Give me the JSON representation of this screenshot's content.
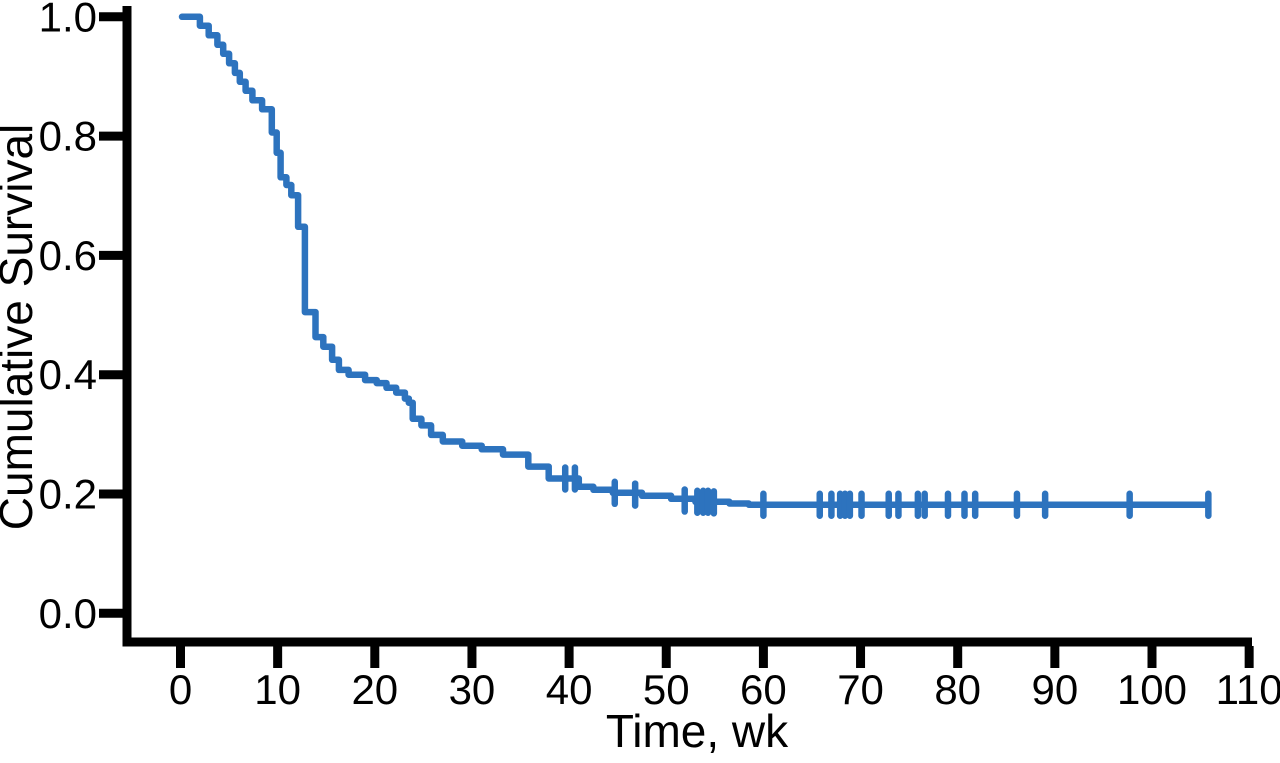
{
  "chart_data": {
    "type": "line",
    "subtype": "kaplan-meier-step-curve",
    "title": "",
    "xlabel": "Time, wk",
    "ylabel": "Cumulative Survival",
    "xlim": [
      0,
      110
    ],
    "ylim": [
      0.0,
      1.0
    ],
    "x_tick_values": [
      0,
      10,
      20,
      30,
      40,
      50,
      60,
      70,
      80,
      90,
      100,
      110
    ],
    "x_tick_labels": [
      "0",
      "10",
      "20",
      "30",
      "40",
      "50",
      "60",
      "70",
      "80",
      "90",
      "100",
      "110"
    ],
    "y_tick_values": [
      0.0,
      0.2,
      0.4,
      0.6,
      0.8,
      1.0
    ],
    "y_tick_labels": [
      "0.0",
      "0.2",
      "0.4",
      "0.6",
      "0.8",
      "1.0"
    ],
    "grid": false,
    "legend": "none",
    "line_color": "#2d73be",
    "axis_color": "#000000",
    "series": [
      {
        "name": "cumulative-survival",
        "steps": [
          [
            0.15,
            1.0
          ],
          [
            2.0,
            0.985
          ],
          [
            2.9,
            0.969
          ],
          [
            3.8,
            0.953
          ],
          [
            4.4,
            0.938
          ],
          [
            5.0,
            0.922
          ],
          [
            5.6,
            0.906
          ],
          [
            6.1,
            0.891
          ],
          [
            6.7,
            0.876
          ],
          [
            7.4,
            0.86
          ],
          [
            8.4,
            0.845
          ],
          [
            9.4,
            0.806
          ],
          [
            9.9,
            0.772
          ],
          [
            10.3,
            0.731
          ],
          [
            10.9,
            0.718
          ],
          [
            11.4,
            0.701
          ],
          [
            12.1,
            0.648
          ],
          [
            12.8,
            0.505
          ],
          [
            13.9,
            0.463
          ],
          [
            14.7,
            0.447
          ],
          [
            15.6,
            0.425
          ],
          [
            16.3,
            0.408
          ],
          [
            17.3,
            0.4
          ],
          [
            19.0,
            0.391
          ],
          [
            20.2,
            0.386
          ],
          [
            21.2,
            0.378
          ],
          [
            22.2,
            0.37
          ],
          [
            23.1,
            0.36
          ],
          [
            23.5,
            0.353
          ],
          [
            23.9,
            0.326
          ],
          [
            24.8,
            0.315
          ],
          [
            25.8,
            0.299
          ],
          [
            27.0,
            0.288
          ],
          [
            29.0,
            0.281
          ],
          [
            31.0,
            0.275
          ],
          [
            33.2,
            0.266
          ],
          [
            35.8,
            0.246
          ],
          [
            37.9,
            0.226
          ],
          [
            41.0,
            0.212
          ],
          [
            42.5,
            0.207
          ],
          [
            44.5,
            0.202
          ],
          [
            47.5,
            0.197
          ],
          [
            50.5,
            0.192
          ],
          [
            53.0,
            0.187
          ],
          [
            56.5,
            0.184
          ],
          [
            58.5,
            0.182
          ],
          [
            105.8,
            0.182
          ]
        ],
        "censor_marks": [
          [
            39.6,
            0.226
          ],
          [
            40.6,
            0.226
          ],
          [
            44.7,
            0.202
          ],
          [
            46.8,
            0.199
          ],
          [
            51.9,
            0.189
          ],
          [
            53.2,
            0.187
          ],
          [
            53.8,
            0.187
          ],
          [
            54.3,
            0.187
          ],
          [
            54.9,
            0.186
          ],
          [
            60.0,
            0.182
          ],
          [
            65.8,
            0.182
          ],
          [
            67.0,
            0.182
          ],
          [
            67.9,
            0.182
          ],
          [
            68.4,
            0.182
          ],
          [
            68.9,
            0.182
          ],
          [
            70.1,
            0.182
          ],
          [
            72.9,
            0.182
          ],
          [
            73.9,
            0.182
          ],
          [
            75.9,
            0.182
          ],
          [
            76.6,
            0.182
          ],
          [
            79.0,
            0.182
          ],
          [
            80.7,
            0.182
          ],
          [
            81.8,
            0.182
          ],
          [
            86.1,
            0.182
          ],
          [
            89.0,
            0.182
          ],
          [
            97.7,
            0.182
          ],
          [
            105.8,
            0.182
          ]
        ]
      }
    ]
  }
}
